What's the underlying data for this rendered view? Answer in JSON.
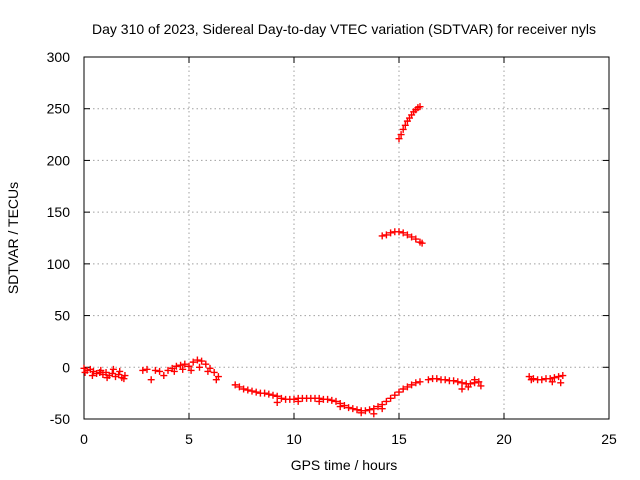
{
  "chart_data": {
    "type": "scatter",
    "title": "Day 310 of 2023, Sidereal Day-to-day VTEC variation (SDTVAR) for receiver nyls",
    "xlabel": "GPS time / hours",
    "ylabel": "SDTVAR / TECUs",
    "xlim": [
      0,
      25
    ],
    "ylim": [
      -50,
      300
    ],
    "xticks": [
      "0",
      "5",
      "10",
      "15",
      "20",
      "25"
    ],
    "yticks": [
      "-50",
      "0",
      "50",
      "100",
      "150",
      "200",
      "250",
      "300"
    ],
    "grid": true,
    "marker": "+",
    "color": "#ff0000",
    "series": [
      {
        "name": "SDTVAR",
        "points": [
          [
            0.0,
            -1
          ],
          [
            0.15,
            -3
          ],
          [
            0.3,
            -2
          ],
          [
            0.45,
            -4
          ],
          [
            0.6,
            -6
          ],
          [
            0.75,
            -5
          ],
          [
            0.9,
            -7
          ],
          [
            1.05,
            -5
          ],
          [
            1.2,
            -8
          ],
          [
            1.35,
            -6
          ],
          [
            1.5,
            -9
          ],
          [
            1.65,
            -7
          ],
          [
            1.8,
            -10
          ],
          [
            1.95,
            -8
          ],
          [
            0.05,
            -5
          ],
          [
            0.4,
            -8
          ],
          [
            0.8,
            -3
          ],
          [
            1.1,
            -10
          ],
          [
            1.4,
            -2
          ],
          [
            1.7,
            -4
          ],
          [
            1.9,
            -11
          ],
          [
            2.8,
            -3
          ],
          [
            3.0,
            -2
          ],
          [
            3.2,
            -12
          ],
          [
            3.4,
            -3
          ],
          [
            3.6,
            -4
          ],
          [
            3.8,
            -8
          ],
          [
            4.0,
            -3
          ],
          [
            4.2,
            -1
          ],
          [
            4.4,
            1
          ],
          [
            4.6,
            2
          ],
          [
            4.8,
            3
          ],
          [
            5.0,
            1
          ],
          [
            5.2,
            5
          ],
          [
            5.4,
            7
          ],
          [
            5.6,
            6
          ],
          [
            5.8,
            3
          ],
          [
            6.0,
            -1
          ],
          [
            6.2,
            -5
          ],
          [
            6.4,
            -9
          ],
          [
            4.3,
            -4
          ],
          [
            4.7,
            -2
          ],
          [
            5.1,
            -3
          ],
          [
            5.5,
            0
          ],
          [
            5.9,
            -4
          ],
          [
            6.3,
            -12
          ],
          [
            7.2,
            -17
          ],
          [
            7.4,
            -19
          ],
          [
            7.6,
            -21
          ],
          [
            7.8,
            -22
          ],
          [
            8.0,
            -23
          ],
          [
            8.2,
            -24
          ],
          [
            8.4,
            -25
          ],
          [
            8.6,
            -25
          ],
          [
            8.8,
            -26
          ],
          [
            9.0,
            -27
          ],
          [
            9.2,
            -28
          ],
          [
            9.4,
            -30
          ],
          [
            9.6,
            -31
          ],
          [
            9.8,
            -31
          ],
          [
            10.0,
            -31
          ],
          [
            10.2,
            -30
          ],
          [
            10.4,
            -30
          ],
          [
            10.6,
            -30
          ],
          [
            10.8,
            -30
          ],
          [
            11.0,
            -30
          ],
          [
            11.2,
            -30
          ],
          [
            11.4,
            -31
          ],
          [
            11.6,
            -31
          ],
          [
            11.8,
            -32
          ],
          [
            12.0,
            -33
          ],
          [
            12.2,
            -35
          ],
          [
            12.4,
            -37
          ],
          [
            12.6,
            -39
          ],
          [
            12.8,
            -40
          ],
          [
            13.0,
            -41
          ],
          [
            13.2,
            -42
          ],
          [
            13.4,
            -42
          ],
          [
            13.6,
            -41
          ],
          [
            13.8,
            -40
          ],
          [
            14.0,
            -38
          ],
          [
            14.2,
            -36
          ],
          [
            14.4,
            -33
          ],
          [
            14.6,
            -30
          ],
          [
            14.8,
            -27
          ],
          [
            15.0,
            -24
          ],
          [
            15.2,
            -21
          ],
          [
            15.4,
            -19
          ],
          [
            15.6,
            -17
          ],
          [
            15.8,
            -15
          ],
          [
            16.0,
            -14
          ],
          [
            9.2,
            -34
          ],
          [
            10.2,
            -33
          ],
          [
            11.2,
            -33
          ],
          [
            12.2,
            -38
          ],
          [
            13.2,
            -44
          ],
          [
            13.8,
            -45
          ],
          [
            14.2,
            -40
          ],
          [
            16.4,
            -12
          ],
          [
            16.6,
            -11
          ],
          [
            16.8,
            -11
          ],
          [
            17.0,
            -12
          ],
          [
            17.2,
            -12
          ],
          [
            17.4,
            -13
          ],
          [
            17.6,
            -13
          ],
          [
            17.8,
            -14
          ],
          [
            18.0,
            -15
          ],
          [
            18.2,
            -16
          ],
          [
            18.4,
            -16
          ],
          [
            18.6,
            -15
          ],
          [
            18.8,
            -14
          ],
          [
            18.0,
            -21
          ],
          [
            18.3,
            -19
          ],
          [
            18.6,
            -12
          ],
          [
            18.9,
            -18
          ],
          [
            21.2,
            -9
          ],
          [
            21.4,
            -11
          ],
          [
            21.6,
            -12
          ],
          [
            21.8,
            -12
          ],
          [
            22.0,
            -11
          ],
          [
            22.2,
            -11
          ],
          [
            22.4,
            -10
          ],
          [
            22.6,
            -9
          ],
          [
            22.8,
            -8
          ],
          [
            21.3,
            -12
          ],
          [
            22.3,
            -14
          ],
          [
            22.7,
            -15
          ],
          [
            14.2,
            127
          ],
          [
            14.4,
            128
          ],
          [
            14.6,
            130
          ],
          [
            14.8,
            131
          ],
          [
            15.0,
            131
          ],
          [
            15.2,
            130
          ],
          [
            15.4,
            128
          ],
          [
            15.6,
            126
          ],
          [
            15.8,
            124
          ],
          [
            16.0,
            121
          ],
          [
            16.1,
            120
          ],
          [
            15.0,
            221
          ],
          [
            15.1,
            225
          ],
          [
            15.2,
            230
          ],
          [
            15.3,
            234
          ],
          [
            15.4,
            238
          ],
          [
            15.5,
            241
          ],
          [
            15.6,
            244
          ],
          [
            15.7,
            247
          ],
          [
            15.8,
            249
          ],
          [
            15.9,
            251
          ],
          [
            16.0,
            252
          ]
        ]
      }
    ]
  }
}
